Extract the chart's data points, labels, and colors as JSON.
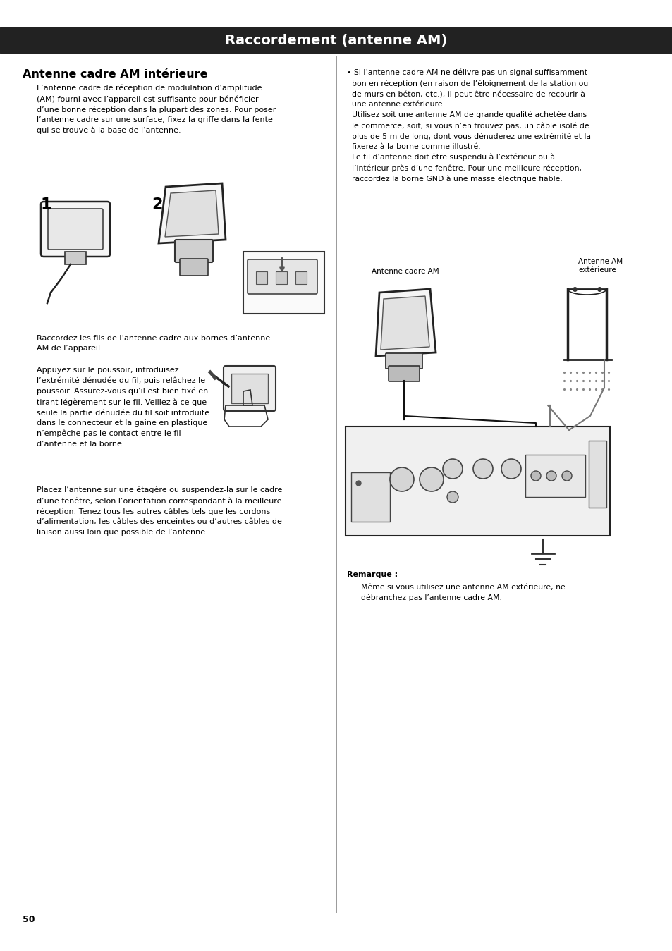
{
  "page_bg": "#ffffff",
  "header_bg": "#222222",
  "header_text": "Raccordement (antenne AM)",
  "header_text_color": "#ffffff",
  "header_font_size": 14,
  "section_title": "Antenne cadre AM intérieure",
  "section_title_font_size": 11.5,
  "body_font_size": 8.0,
  "small_font_size": 7.8,
  "page_number": "50",
  "para1": "L’antenne cadre de réception de modulation d’amplitude\n(AM) fourni avec l’appareil est suffisante pour bénéficier\nd’une bonne réception dans la plupart des zones. Pour poser\nl’antenne cadre sur une surface, fixez la griffe dans la fente\nqui se trouve à la base de l’antenne.",
  "para2": "Raccordez les fils de l’antenne cadre aux bornes d’antenne\nAM de l’appareil.",
  "para3_left": "Appuyez sur le poussoir, introduisez\nl’extrémité dénudée du fil, puis relâchez le\npoussoir. Assurez-vous qu’il est bien fixé en\ntirant légèrement sur le fil. Veillez à ce que\nseule la partie dénudée du fil soit introduite\ndans le connecteur et la gaine en plastique\nn’empêche pas le contact entre le fil\nd’antenne et la borne.",
  "para4": "Placez l’antenne sur une étagère ou suspendez-la sur le cadre\nd’une fenêtre, selon l’orientation correspondant à la meilleure\nréception. Tenez tous les autres câbles tels que les cordons\nd’alimentation, les câbles des enceintes ou d’autres câbles de\nliaison aussi loin que possible de l’antenne.",
  "bullet_text": "• Si l’antenne cadre AM ne délivre pas un signal suffisamment\n  bon en réception (en raison de l’éloignement de la station ou\n  de murs en béton, etc.), il peut être nécessaire de recourir à\n  une antenne extérieure.\n  Utilisez soit une antenne AM de grande qualité achetée dans\n  le commerce, soit, si vous n’en trouvez pas, un câble isolé de\n  plus de 5 m de long, dont vous dénuderez une extrémité et la\n  fixerez à la borne comme illustré.\n  Le fil d’antenne doit être suspendu à l’extérieur ou à\n  l’intérieur près d’une fenêtre. Pour une meilleure réception,\n  raccordez la borne GND à une masse électrique fiable.",
  "label_antenne_cadre": "Antenne cadre AM",
  "label_antenne_ext": "Antenne AM\nextérieure",
  "remarque_title": "Remarque :",
  "remarque_text": "Même si vous utilisez une antenne AM extérieure, ne\ndébranchez pas l’antenne cadre AM.",
  "divider_color": "#999999",
  "text_color": "#000000",
  "line_color": "#333333"
}
